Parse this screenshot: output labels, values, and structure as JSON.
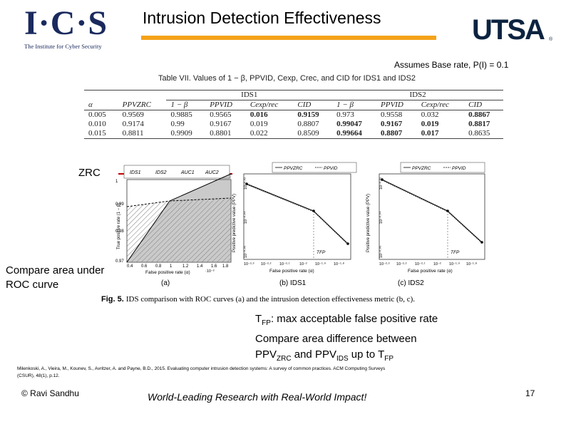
{
  "header": {
    "logo_left": {
      "letters": "I·C·S",
      "subtitle": "The Institute for Cyber Security"
    },
    "title": "Intrusion Detection Effectiveness",
    "logo_right": "UTSA",
    "logo_right_mark": "®",
    "accent_color": "#f5a21a"
  },
  "base_rate_note": "Assumes Base rate, P(I) = 0.1",
  "table": {
    "caption": "Table VII. Values of 1 − β, PPVID, Cexp, Crec, and CID for IDS1 and IDS2",
    "group_headers": [
      "IDS1",
      "IDS2"
    ],
    "columns": [
      "α",
      "PPVZRC",
      "1 − β",
      "PPVID",
      "Cexp/rec",
      "CID",
      "1 − β",
      "PPVID",
      "Cexp/rec",
      "CID"
    ],
    "rows": [
      [
        "0.005",
        "0.9569",
        "0.9885",
        "0.9565",
        "0.016",
        "0.9159",
        "0.973",
        "0.9558",
        "0.032",
        "0.8867"
      ],
      [
        "0.010",
        "0.9174",
        "0.99",
        "0.9167",
        "0.019",
        "0.8807",
        "0.99047",
        "0.9167",
        "0.019",
        "0.8817"
      ],
      [
        "0.015",
        "0.8811",
        "0.9909",
        "0.8801",
        "0.022",
        "0.8509",
        "0.99664",
        "0.8807",
        "0.017",
        "0.8635"
      ]
    ]
  },
  "zrc_label": "ZRC",
  "compare_label": "Compare area under ROC curve",
  "figure": {
    "panel_a": {
      "legend": [
        "IDS1",
        "IDS2",
        "AUC1",
        "AUC2"
      ],
      "ylabel": "True positive rate (1 − β)",
      "xlabel": "False positive rate (α)",
      "x_exponent": "·10⁻²",
      "yticks": [
        "1",
        "0.99",
        "0.98",
        "0.97"
      ],
      "xticks": [
        "0.4",
        "0.6",
        "0.8",
        "1",
        "1.2",
        "1.4",
        "1.6",
        "1.8"
      ],
      "sub": "(a)"
    },
    "panel_b": {
      "legend": [
        "PPVZRC",
        "PPVID"
      ],
      "ylabel": "Positive predictive value (PPV)",
      "xlabel": "False positive rate (α)",
      "yticks": [
        "10⁻⁰·⁰²",
        "10⁻⁰·⁰⁴",
        "10⁻⁰·⁰⁶"
      ],
      "xticks": [
        "10⁻²·³",
        "10⁻²·²",
        "10⁻²·¹",
        "10⁻²",
        "10⁻¹·⁹",
        "10⁻¹·⁸"
      ],
      "tfp": "TFP",
      "sub": "(b) IDS1"
    },
    "panel_c": {
      "legend": [
        "PPVZRC",
        "PPVID"
      ],
      "ylabel": "Positive predictive value (PPV)",
      "xlabel": "False positive rate (α)",
      "yticks": [
        "10⁻⁰·⁰²",
        "10⁻⁰·⁰⁴",
        "10⁻⁰·⁰⁶"
      ],
      "xticks": [
        "10⁻²·³",
        "10⁻²·²",
        "10⁻²·¹",
        "10⁻²",
        "10⁻¹·⁹",
        "10⁻¹·⁸"
      ],
      "tfp": "TFP",
      "sub": "(c) IDS2"
    },
    "caption_prefix": "Fig. 5.",
    "caption": "IDS comparison with ROC curves (a) and the intrusion detection effectiveness metric (b, c)."
  },
  "notes": {
    "line1_pre": "T",
    "line1_sub": "FP",
    "line1_post": ": max acceptable false positive rate",
    "line2": "Compare area difference between",
    "line3_a": "PPV",
    "line3_a_sub": "ZRC",
    "line3_b": " and PPV",
    "line3_b_sub": "IDS",
    "line3_c": " up to T",
    "line3_c_sub": "FP"
  },
  "citation": "Milenkoski, A., Vieira, M., Kounev, S., Avritzer, A. and Payne, B.D., 2015. Evaluating computer intrusion detection systems: A survey of common practices. ACM Computing Surveys (CSUR), 48(1), p.12.",
  "footer": {
    "left": "© Ravi  Sandhu",
    "center": "World-Leading Research with Real-World Impact!",
    "page": "17"
  }
}
